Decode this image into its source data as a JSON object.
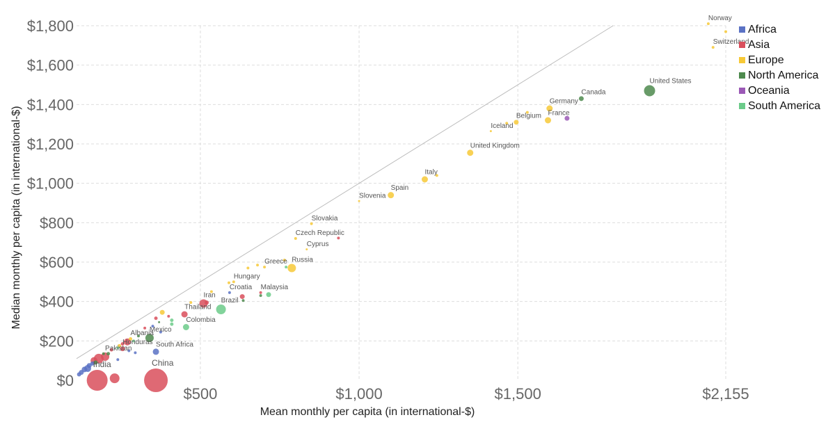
{
  "chart_data": {
    "type": "scatter",
    "xlabel": "Mean monthly per capita (in international-$)",
    "ylabel": "Median monthly per capita (in international-$)",
    "xlim": [
      110,
      2155
    ],
    "ylim": [
      0,
      1800
    ],
    "x_ticks": [
      {
        "value": 500,
        "label": "$500"
      },
      {
        "value": 1000,
        "label": "$1,000"
      },
      {
        "value": 1500,
        "label": "$1,500"
      },
      {
        "value": 2155,
        "label": "$2,155"
      }
    ],
    "y_ticks": [
      {
        "value": 0,
        "label": "$0"
      },
      {
        "value": 200,
        "label": "$200"
      },
      {
        "value": 400,
        "label": "$400"
      },
      {
        "value": 600,
        "label": "$600"
      },
      {
        "value": 800,
        "label": "$800"
      },
      {
        "value": 1000,
        "label": "$1,000"
      },
      {
        "value": 1200,
        "label": "$1,200"
      },
      {
        "value": 1400,
        "label": "$1,400"
      },
      {
        "value": 1600,
        "label": "$1,600"
      },
      {
        "value": 1800,
        "label": "$1,800"
      }
    ],
    "grid": true,
    "legend_position": "right",
    "reference_line": {
      "from": [
        110,
        110
      ],
      "to": [
        1800,
        1800
      ]
    },
    "legend": [
      {
        "name": "Africa",
        "color": "#5b72c4"
      },
      {
        "name": "Asia",
        "color": "#d94f5c"
      },
      {
        "name": "Europe",
        "color": "#f7c937"
      },
      {
        "name": "North America",
        "color": "#4d8a4d"
      },
      {
        "name": "Oceania",
        "color": "#9b59b6"
      },
      {
        "name": "South America",
        "color": "#6ccb8a"
      }
    ],
    "points": [
      {
        "label": "Norway",
        "x": 2100,
        "y": 1810,
        "r": 2,
        "region": "Europe"
      },
      {
        "label": "",
        "x": 2155,
        "y": 1770,
        "r": 2,
        "region": "Europe"
      },
      {
        "label": "Switzerland",
        "x": 2115,
        "y": 1690,
        "r": 2,
        "region": "Europe"
      },
      {
        "label": "United States",
        "x": 1915,
        "y": 1470,
        "r": 8,
        "region": "North America"
      },
      {
        "label": "Canada",
        "x": 1700,
        "y": 1430,
        "r": 3.5,
        "region": "North America"
      },
      {
        "label": "Germany",
        "x": 1600,
        "y": 1380,
        "r": 4.5,
        "region": "Europe"
      },
      {
        "label": "",
        "x": 1530,
        "y": 1360,
        "r": 2,
        "region": "Europe"
      },
      {
        "label": "France",
        "x": 1595,
        "y": 1320,
        "r": 4.5,
        "region": "Europe"
      },
      {
        "label": "",
        "x": 1655,
        "y": 1330,
        "r": 3.5,
        "region": "Oceania"
      },
      {
        "label": "Belgium",
        "x": 1495,
        "y": 1310,
        "r": 3.5,
        "region": "Europe"
      },
      {
        "label": "",
        "x": 1465,
        "y": 1305,
        "r": 2,
        "region": "Europe"
      },
      {
        "label": "Iceland",
        "x": 1415,
        "y": 1265,
        "r": 1.5,
        "region": "Europe"
      },
      {
        "label": "United Kingdom",
        "x": 1350,
        "y": 1155,
        "r": 4.5,
        "region": "Europe"
      },
      {
        "label": "Italy",
        "x": 1207,
        "y": 1020,
        "r": 4.5,
        "region": "Europe"
      },
      {
        "label": "",
        "x": 1245,
        "y": 1040,
        "r": 2,
        "region": "Europe"
      },
      {
        "label": "Spain",
        "x": 1100,
        "y": 940,
        "r": 4.5,
        "region": "Europe"
      },
      {
        "label": "Slovenia",
        "x": 1000,
        "y": 910,
        "r": 1.5,
        "region": "Europe"
      },
      {
        "label": "Slovakia",
        "x": 850,
        "y": 795,
        "r": 2,
        "region": "Europe"
      },
      {
        "label": "Czech Republic",
        "x": 800,
        "y": 720,
        "r": 2,
        "region": "Europe"
      },
      {
        "label": "",
        "x": 935,
        "y": 722,
        "r": 2,
        "region": "Asia"
      },
      {
        "label": "Cyprus",
        "x": 835,
        "y": 665,
        "r": 1.5,
        "region": "Europe"
      },
      {
        "label": "Russia",
        "x": 788,
        "y": 570,
        "r": 6,
        "region": "Europe"
      },
      {
        "label": "",
        "x": 770,
        "y": 575,
        "r": 2,
        "region": "South America"
      },
      {
        "label": "",
        "x": 765,
        "y": 610,
        "r": 2,
        "region": "Europe"
      },
      {
        "label": "Greece",
        "x": 702,
        "y": 575,
        "r": 2,
        "region": "Europe"
      },
      {
        "label": "",
        "x": 680,
        "y": 585,
        "r": 2,
        "region": "Europe"
      },
      {
        "label": "",
        "x": 650,
        "y": 570,
        "r": 2,
        "region": "Europe"
      },
      {
        "label": "Hungary",
        "x": 605,
        "y": 500,
        "r": 2,
        "region": "Europe"
      },
      {
        "label": "",
        "x": 590,
        "y": 495,
        "r": 2,
        "region": "Europe"
      },
      {
        "label": "Malaysia",
        "x": 690,
        "y": 445,
        "r": 2,
        "region": "Asia"
      },
      {
        "label": "",
        "x": 715,
        "y": 435,
        "r": 3.5,
        "region": "South America"
      },
      {
        "label": "",
        "x": 690,
        "y": 430,
        "r": 2,
        "region": "North America"
      },
      {
        "label": "Croatia",
        "x": 592,
        "y": 445,
        "r": 2,
        "region": "Africa"
      },
      {
        "label": "",
        "x": 632,
        "y": 425,
        "r": 3.5,
        "region": "Asia"
      },
      {
        "label": "",
        "x": 635,
        "y": 405,
        "r": 2,
        "region": "North America"
      },
      {
        "label": "Iran",
        "x": 510,
        "y": 390,
        "r": 6,
        "region": "Asia"
      },
      {
        "label": "",
        "x": 520,
        "y": 395,
        "r": 3,
        "region": "Asia"
      },
      {
        "label": "Brazil",
        "x": 565,
        "y": 360,
        "r": 7,
        "region": "South America"
      },
      {
        "label": "Thailand",
        "x": 450,
        "y": 335,
        "r": 4.5,
        "region": "Asia"
      },
      {
        "label": "",
        "x": 470,
        "y": 395,
        "r": 2,
        "region": "Europe"
      },
      {
        "label": "",
        "x": 535,
        "y": 450,
        "r": 2,
        "region": "Europe"
      },
      {
        "label": "",
        "x": 380,
        "y": 345,
        "r": 3.5,
        "region": "Europe"
      },
      {
        "label": "",
        "x": 360,
        "y": 315,
        "r": 2.5,
        "region": "Asia"
      },
      {
        "label": "",
        "x": 410,
        "y": 305,
        "r": 2.5,
        "region": "South America"
      },
      {
        "label": "",
        "x": 400,
        "y": 325,
        "r": 2,
        "region": "Asia"
      },
      {
        "label": "Colombia",
        "x": 455,
        "y": 270,
        "r": 4.5,
        "region": "South America"
      },
      {
        "label": "",
        "x": 410,
        "y": 285,
        "r": 2.5,
        "region": "South America"
      },
      {
        "label": "",
        "x": 370,
        "y": 295,
        "r": 1.5,
        "region": "North America"
      },
      {
        "label": "",
        "x": 325,
        "y": 265,
        "r": 2,
        "region": "Asia"
      },
      {
        "label": "",
        "x": 350,
        "y": 275,
        "r": 2,
        "region": "Africa"
      },
      {
        "label": "Mexico",
        "x": 340,
        "y": 215,
        "r": 6,
        "region": "North America"
      },
      {
        "label": "",
        "x": 375,
        "y": 245,
        "r": 2,
        "region": "Africa"
      },
      {
        "label": "Albania",
        "x": 280,
        "y": 210,
        "r": 2.5,
        "region": "Europe"
      },
      {
        "label": "",
        "x": 270,
        "y": 195,
        "r": 5,
        "region": "Asia"
      },
      {
        "label": "",
        "x": 305,
        "y": 225,
        "r": 2,
        "region": "North America"
      },
      {
        "label": "",
        "x": 290,
        "y": 200,
        "r": 2,
        "region": "South America"
      },
      {
        "label": "",
        "x": 255,
        "y": 185,
        "r": 2.5,
        "region": "Asia"
      },
      {
        "label": "",
        "x": 245,
        "y": 175,
        "r": 2.5,
        "region": "Europe"
      },
      {
        "label": "Honduras",
        "x": 255,
        "y": 160,
        "r": 3.5,
        "region": "Asia"
      },
      {
        "label": "",
        "x": 275,
        "y": 150,
        "r": 2,
        "region": "Africa"
      },
      {
        "label": "",
        "x": 240,
        "y": 165,
        "r": 2,
        "region": "South America"
      },
      {
        "label": "South Africa",
        "x": 360,
        "y": 145,
        "r": 4.5,
        "region": "Africa"
      },
      {
        "label": "",
        "x": 295,
        "y": 140,
        "r": 2,
        "region": "Africa"
      },
      {
        "label": "Pakistan",
        "x": 200,
        "y": 120,
        "r": 6,
        "region": "Asia"
      },
      {
        "label": "",
        "x": 180,
        "y": 110,
        "r": 7,
        "region": "Asia"
      },
      {
        "label": "",
        "x": 165,
        "y": 100,
        "r": 5,
        "region": "Asia"
      },
      {
        "label": "",
        "x": 220,
        "y": 155,
        "r": 2.5,
        "region": "Asia"
      },
      {
        "label": "",
        "x": 210,
        "y": 135,
        "r": 2.5,
        "region": "North America"
      },
      {
        "label": "",
        "x": 240,
        "y": 105,
        "r": 2,
        "region": "Africa"
      },
      {
        "label": "",
        "x": 195,
        "y": 135,
        "r": 2,
        "region": "North America"
      },
      {
        "label": "",
        "x": 170,
        "y": 90,
        "r": 3,
        "region": "North America"
      },
      {
        "label": "",
        "x": 150,
        "y": 75,
        "r": 3.5,
        "region": "Africa"
      },
      {
        "label": "",
        "x": 145,
        "y": 60,
        "r": 5,
        "region": "Africa"
      },
      {
        "label": "",
        "x": 135,
        "y": 55,
        "r": 4,
        "region": "Africa"
      },
      {
        "label": "",
        "x": 125,
        "y": 40,
        "r": 3.5,
        "region": "Africa"
      },
      {
        "label": "",
        "x": 118,
        "y": 30,
        "r": 3,
        "region": "Africa"
      },
      {
        "label": "",
        "x": 160,
        "y": 85,
        "r": 3,
        "region": "Africa"
      },
      {
        "label": "India",
        "x": 175,
        "y": 0,
        "r": 15,
        "region": "Asia"
      },
      {
        "label": "",
        "x": 230,
        "y": 10,
        "r": 7,
        "region": "Asia"
      },
      {
        "label": "China",
        "x": 360,
        "y": 0,
        "r": 17,
        "region": "Asia"
      }
    ]
  }
}
